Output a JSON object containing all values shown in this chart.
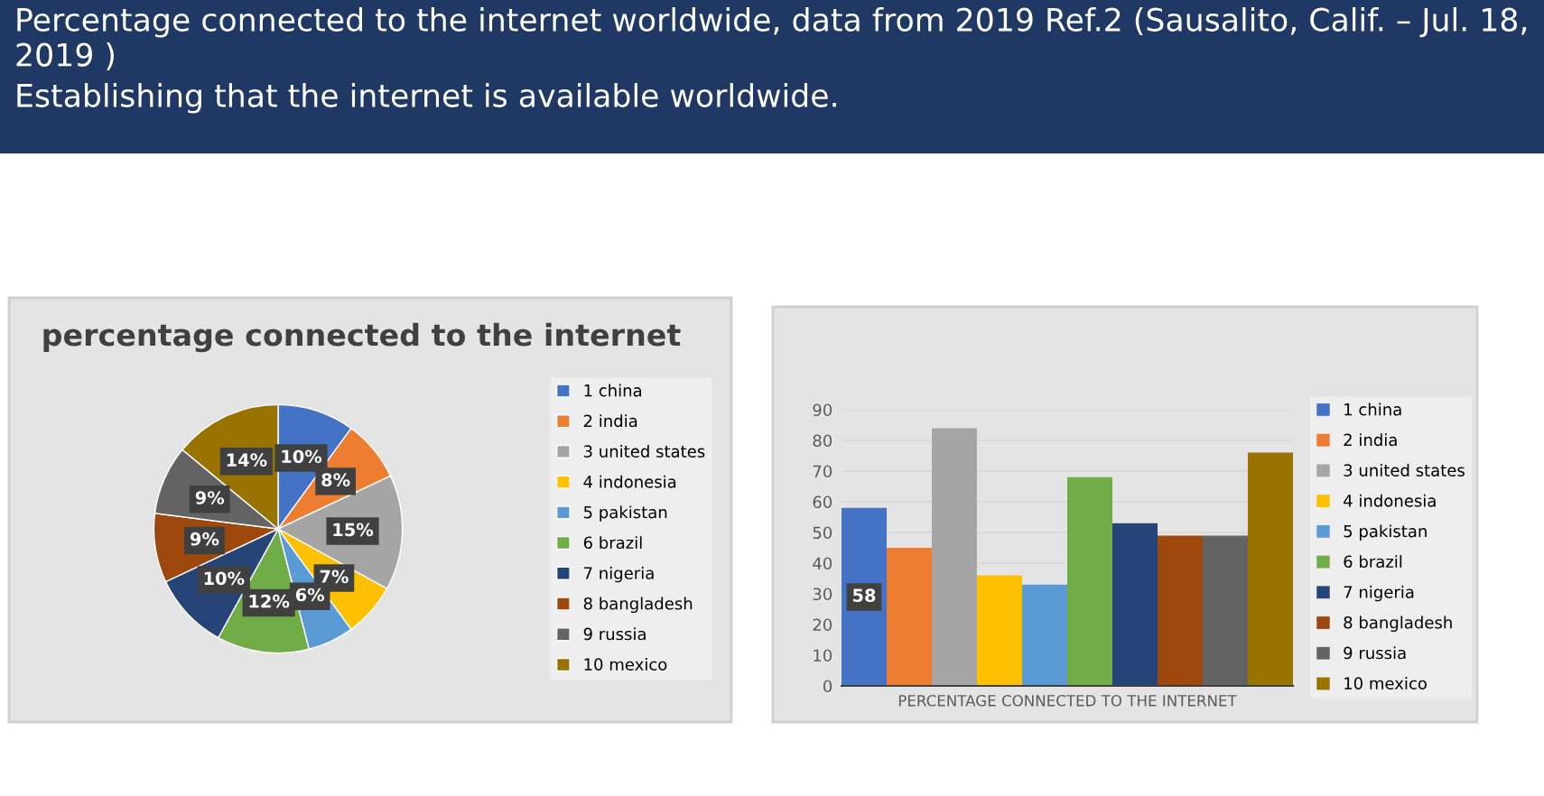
{
  "chart_data": [
    {
      "type": "pie",
      "title": "percentage connected to the internet",
      "annotations": [
        "Percentage connected to the internet worldwide, data from 2019 Ref.2 (Sausalito, Calif. – Jul. 18, 2019 )",
        "Establishing that the internet is available worldwide."
      ],
      "categories": [
        "1 china",
        "2 india",
        "3 united states",
        "4 indonesia",
        "5 pakistan",
        "6 brazil",
        "7 nigeria",
        "8 bangladesh",
        "9 russia",
        "10 mexico"
      ],
      "values": [
        10,
        8,
        15,
        7,
        6,
        12,
        10,
        9,
        9,
        14
      ],
      "value_labels": [
        "10%",
        "8%",
        "15%",
        "7%",
        "6%",
        "12%",
        "10%",
        "9%",
        "9%",
        "14%"
      ],
      "colors": [
        "#4472c4",
        "#ed7d31",
        "#a5a5a5",
        "#ffc000",
        "#5b9bd5",
        "#70ad47",
        "#264478",
        "#9e480e",
        "#636363",
        "#997300"
      ],
      "legend": "right"
    },
    {
      "type": "bar",
      "categories": [
        "PERCENTAGE CONNECTED TO THE INTERNET"
      ],
      "series": [
        {
          "name": "1 china",
          "color": "#4472c4",
          "values": [
            58
          ],
          "value_labels": [
            "58"
          ]
        },
        {
          "name": "2 india",
          "color": "#ed7d31",
          "values": [
            45
          ]
        },
        {
          "name": "3 united states",
          "color": "#a5a5a5",
          "values": [
            84
          ]
        },
        {
          "name": "4 indonesia",
          "color": "#ffc000",
          "values": [
            36
          ]
        },
        {
          "name": "5 pakistan",
          "color": "#5b9bd5",
          "values": [
            33
          ]
        },
        {
          "name": "6 brazil",
          "color": "#70ad47",
          "values": [
            68
          ]
        },
        {
          "name": "7 nigeria",
          "color": "#264478",
          "values": [
            53
          ]
        },
        {
          "name": "8 bangladesh",
          "color": "#9e480e",
          "values": [
            49
          ]
        },
        {
          "name": "9 russia",
          "color": "#636363",
          "values": [
            49
          ]
        },
        {
          "name": "10 mexico",
          "color": "#997300",
          "values": [
            76
          ]
        }
      ],
      "ylim": [
        0,
        90
      ],
      "yticks": [
        0,
        10,
        20,
        30,
        40,
        50,
        60,
        70,
        80,
        90
      ],
      "grid": "y",
      "legend": "right"
    }
  ]
}
